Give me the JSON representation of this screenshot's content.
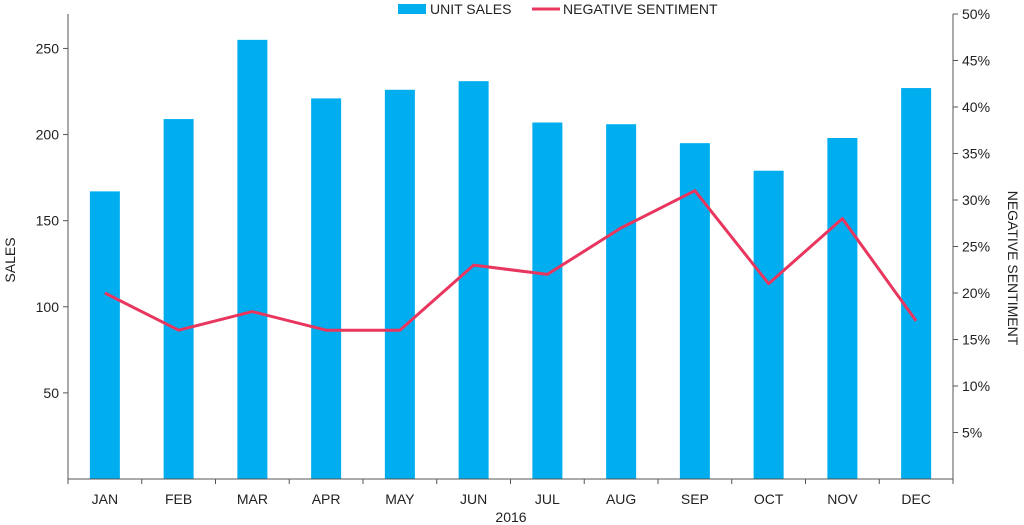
{
  "chart_data": {
    "type": "bar",
    "categories": [
      "JAN",
      "FEB",
      "MAR",
      "APR",
      "MAY",
      "JUN",
      "JUL",
      "AUG",
      "SEP",
      "OCT",
      "NOV",
      "DEC"
    ],
    "series": [
      {
        "name": "UNIT SALES",
        "type": "bar",
        "axis": "left",
        "color": "#00AEEF",
        "values": [
          167,
          209,
          255,
          221,
          226,
          231,
          207,
          206,
          195,
          179,
          198,
          227
        ]
      },
      {
        "name": "NEGATIVE SENTIMENT",
        "type": "line",
        "axis": "right",
        "color": "#E8365F",
        "values": [
          0.2,
          0.16,
          0.18,
          0.16,
          0.16,
          0.23,
          0.22,
          0.27,
          0.31,
          0.21,
          0.28,
          0.17
        ]
      }
    ],
    "xlabel": "2016",
    "ylabel": "SALES",
    "y2label": "NEGATIVE SENTIMENT",
    "ylim": [
      0,
      270
    ],
    "y2lim": [
      0,
      0.5
    ],
    "yticks": [
      50,
      100,
      150,
      200,
      250
    ],
    "y2ticks": [
      "5%",
      "10%",
      "15%",
      "20%",
      "25%",
      "30%",
      "35%",
      "40%",
      "45%",
      "50%"
    ],
    "y2tick_values": [
      0.05,
      0.1,
      0.15,
      0.2,
      0.25,
      0.3,
      0.35,
      0.4,
      0.45,
      0.5
    ],
    "legend": {
      "position": "top-center",
      "items": [
        "UNIT SALES",
        "NEGATIVE SENTIMENT"
      ]
    },
    "grid": false
  }
}
